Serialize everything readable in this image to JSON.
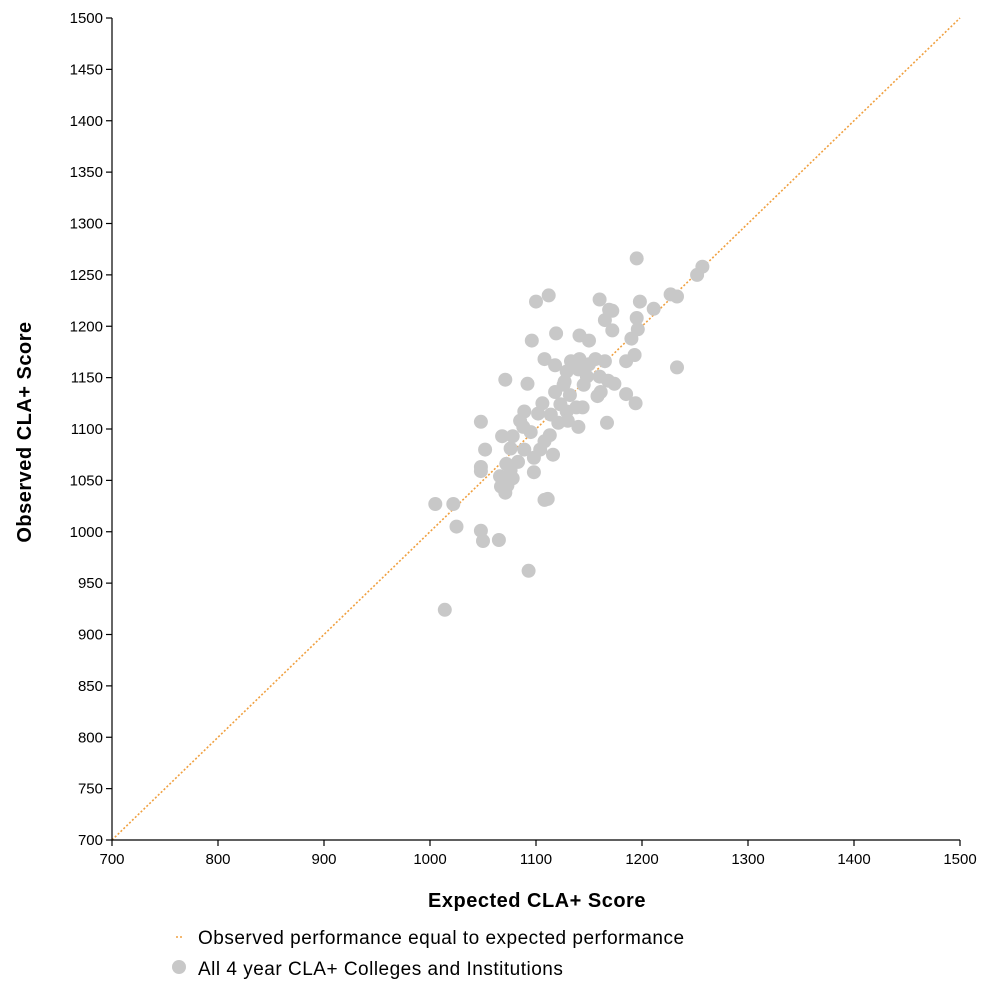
{
  "chart_data": {
    "type": "scatter",
    "xlabel": "Expected CLA+ Score",
    "ylabel": "Observed CLA+ Score",
    "xlim": [
      700,
      1500
    ],
    "ylim": [
      700,
      1500
    ],
    "x_ticks": [
      700,
      800,
      900,
      1000,
      1100,
      1200,
      1300,
      1400,
      1500
    ],
    "y_ticks": [
      700,
      750,
      800,
      850,
      900,
      950,
      1000,
      1050,
      1100,
      1150,
      1200,
      1250,
      1300,
      1350,
      1400,
      1450,
      1500
    ],
    "grid": false,
    "legend_position": "bottom",
    "reference_line": {
      "label": "Observed performance equal to expected performance",
      "color": "#f0a040",
      "from": [
        700,
        700
      ],
      "to": [
        1500,
        1500
      ]
    },
    "series": [
      {
        "name": "All 4 year CLA+ Colleges and Institutions",
        "color": "#c8c8c8",
        "points": [
          [
            1195,
            1266
          ],
          [
            1257,
            1258
          ],
          [
            1252,
            1250
          ],
          [
            1227,
            1231
          ],
          [
            1233,
            1229
          ],
          [
            1112,
            1230
          ],
          [
            1100,
            1224
          ],
          [
            1198,
            1224
          ],
          [
            1160,
            1226
          ],
          [
            1169,
            1216
          ],
          [
            1211,
            1217
          ],
          [
            1172,
            1215
          ],
          [
            1165,
            1206
          ],
          [
            1195,
            1208
          ],
          [
            1172,
            1196
          ],
          [
            1119,
            1193
          ],
          [
            1141,
            1191
          ],
          [
            1096,
            1186
          ],
          [
            1150,
            1186
          ],
          [
            1190,
            1188
          ],
          [
            1196,
            1197
          ],
          [
            1108,
            1168
          ],
          [
            1133,
            1166
          ],
          [
            1141,
            1168
          ],
          [
            1150,
            1163
          ],
          [
            1156,
            1168
          ],
          [
            1165,
            1166
          ],
          [
            1185,
            1166
          ],
          [
            1193,
            1172
          ],
          [
            1233,
            1160
          ],
          [
            1118,
            1162
          ],
          [
            1129,
            1156
          ],
          [
            1140,
            1158
          ],
          [
            1148,
            1151
          ],
          [
            1160,
            1151
          ],
          [
            1071,
            1148
          ],
          [
            1092,
            1144
          ],
          [
            1127,
            1146
          ],
          [
            1145,
            1143
          ],
          [
            1168,
            1147
          ],
          [
            1118,
            1136
          ],
          [
            1132,
            1133
          ],
          [
            1158,
            1132
          ],
          [
            1185,
            1134
          ],
          [
            1194,
            1125
          ],
          [
            1106,
            1125
          ],
          [
            1123,
            1124
          ],
          [
            1138,
            1121
          ],
          [
            1161,
            1136
          ],
          [
            1174,
            1144
          ],
          [
            1089,
            1117
          ],
          [
            1102,
            1115
          ],
          [
            1114,
            1114
          ],
          [
            1129,
            1117
          ],
          [
            1144,
            1121
          ],
          [
            1048,
            1107
          ],
          [
            1085,
            1108
          ],
          [
            1121,
            1106
          ],
          [
            1140,
            1102
          ],
          [
            1167,
            1106
          ],
          [
            1068,
            1093
          ],
          [
            1078,
            1093
          ],
          [
            1095,
            1097
          ],
          [
            1113,
            1094
          ],
          [
            1130,
            1108
          ],
          [
            1052,
            1080
          ],
          [
            1076,
            1081
          ],
          [
            1089,
            1080
          ],
          [
            1104,
            1080
          ],
          [
            1116,
            1075
          ],
          [
            1048,
            1063
          ],
          [
            1072,
            1066
          ],
          [
            1083,
            1068
          ],
          [
            1098,
            1072
          ],
          [
            1108,
            1088
          ],
          [
            1048,
            1059
          ],
          [
            1066,
            1054
          ],
          [
            1078,
            1052
          ],
          [
            1098,
            1058
          ],
          [
            1076,
            1060
          ],
          [
            1067,
            1044
          ],
          [
            1071,
            1038
          ],
          [
            1111,
            1032
          ],
          [
            1108,
            1031
          ],
          [
            1073,
            1045
          ],
          [
            1005,
            1027
          ],
          [
            1022,
            1027
          ],
          [
            1025,
            1005
          ],
          [
            1048,
            1001
          ],
          [
            1050,
            991
          ],
          [
            1065,
            992
          ],
          [
            1093,
            962
          ],
          [
            1014,
            924
          ],
          [
            1088,
            1102
          ],
          [
            1126,
            1143
          ]
        ]
      }
    ]
  }
}
